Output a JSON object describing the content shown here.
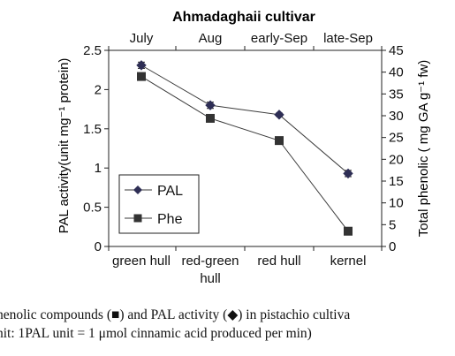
{
  "chart_data": {
    "type": "line",
    "title": "Ahmadaghaii cultivar",
    "categories": [
      "green hull",
      "red-green hull",
      "red hull",
      "kernel"
    ],
    "top_categories": [
      "July",
      "Aug",
      "early-Sep",
      "late-Sep"
    ],
    "ylabel_left": "PAL activity(unit mg⁻¹ protein)",
    "ylabel_right": "Total phenolic ( mg GA g⁻¹ fw)",
    "ylim_left": [
      0,
      2.5
    ],
    "ylim_right": [
      0,
      45
    ],
    "yticks_left": [
      "0",
      "0.5",
      "1",
      "1.5",
      "2",
      "2.5"
    ],
    "yticks_right": [
      "0",
      "5",
      "10",
      "15",
      "20",
      "25",
      "30",
      "35",
      "40",
      "45"
    ],
    "legend_position": "bottom-left",
    "grid": false,
    "series": [
      {
        "name": "PAL",
        "axis": "left",
        "marker": "diamond",
        "values": [
          2.31,
          1.8,
          1.68,
          0.93
        ],
        "errors": [
          0.04,
          0.04,
          0.02,
          0.04
        ]
      },
      {
        "name": "Phe",
        "axis": "right",
        "marker": "square",
        "values": [
          39,
          29.4,
          24.3,
          3.5
        ],
        "errors": [
          0,
          0,
          0,
          0
        ]
      }
    ],
    "colors": {
      "line": "#3a3a3a",
      "pal_marker": "#2e2e55",
      "phe_marker": "#333333"
    }
  },
  "caption": {
    "line1": "henolic compounds (■) and PAL activity (◆) in pistachio  cultiva",
    "line2": "nit: 1PAL unit = 1 μmol cinnamic acid produced per min)"
  }
}
